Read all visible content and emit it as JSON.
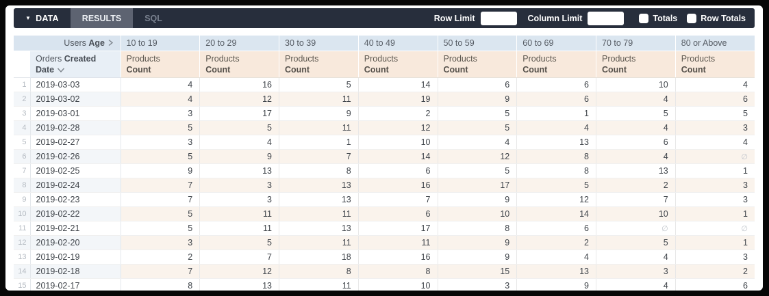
{
  "colors": {
    "toolbar_bg": "#272e3c",
    "results_tab_bg": "#5d6371",
    "sql_tab_text": "#79818f",
    "pivot_header_bg": "#dbe6f0",
    "dimension_header_bg": "#e8eff6",
    "measure_header_bg": "#f8e9dc",
    "stripe_measure_bg": "#faf3ec",
    "stripe_dimension_bg": "#f3f6f9"
  },
  "toolbar": {
    "data_tab": "DATA",
    "results_tab": "RESULTS",
    "sql_tab": "SQL",
    "row_limit_label": "Row Limit",
    "row_limit_value": "",
    "column_limit_label": "Column Limit",
    "column_limit_value": "",
    "totals_label": "Totals",
    "totals_checked": false,
    "row_totals_label": "Row Totals",
    "row_totals_checked": false
  },
  "table": {
    "pivot_dimension": {
      "prefix": "Users",
      "field": "Age"
    },
    "age_buckets": [
      "10 to 19",
      "20 to 29",
      "30 to 39",
      "40 to 49",
      "50 to 59",
      "60 to 69",
      "70 to 79",
      "80 or Above"
    ],
    "row_dimension": {
      "prefix": "Orders",
      "field": "Created Date"
    },
    "measure": {
      "view": "Products",
      "field": "Count"
    },
    "null_symbol": "∅",
    "rows": [
      {
        "num": "1",
        "date": "2019-03-03",
        "values": [
          4,
          16,
          5,
          14,
          6,
          6,
          10,
          4
        ]
      },
      {
        "num": "2",
        "date": "2019-03-02",
        "values": [
          4,
          12,
          11,
          19,
          9,
          6,
          4,
          6
        ]
      },
      {
        "num": "3",
        "date": "2019-03-01",
        "values": [
          3,
          17,
          9,
          2,
          5,
          1,
          5,
          5
        ]
      },
      {
        "num": "4",
        "date": "2019-02-28",
        "values": [
          5,
          5,
          11,
          12,
          5,
          4,
          4,
          3
        ]
      },
      {
        "num": "5",
        "date": "2019-02-27",
        "values": [
          3,
          4,
          1,
          10,
          4,
          13,
          6,
          4
        ]
      },
      {
        "num": "6",
        "date": "2019-02-26",
        "values": [
          5,
          9,
          7,
          14,
          12,
          8,
          4,
          null
        ]
      },
      {
        "num": "7",
        "date": "2019-02-25",
        "values": [
          9,
          13,
          8,
          6,
          5,
          8,
          13,
          1
        ]
      },
      {
        "num": "8",
        "date": "2019-02-24",
        "values": [
          7,
          3,
          13,
          16,
          17,
          5,
          2,
          3
        ]
      },
      {
        "num": "9",
        "date": "2019-02-23",
        "values": [
          7,
          3,
          13,
          7,
          9,
          12,
          7,
          3
        ]
      },
      {
        "num": "10",
        "date": "2019-02-22",
        "values": [
          5,
          11,
          11,
          6,
          10,
          14,
          10,
          1
        ]
      },
      {
        "num": "11",
        "date": "2019-02-21",
        "values": [
          5,
          11,
          13,
          17,
          8,
          6,
          null,
          null
        ]
      },
      {
        "num": "12",
        "date": "2019-02-20",
        "values": [
          3,
          5,
          11,
          11,
          9,
          2,
          5,
          1
        ]
      },
      {
        "num": "13",
        "date": "2019-02-19",
        "values": [
          2,
          7,
          18,
          16,
          9,
          4,
          4,
          3
        ]
      },
      {
        "num": "14",
        "date": "2019-02-18",
        "values": [
          7,
          12,
          8,
          8,
          15,
          13,
          3,
          2
        ]
      },
      {
        "num": "15",
        "date": "2019-02-17",
        "values": [
          8,
          13,
          11,
          10,
          3,
          9,
          4,
          6
        ]
      }
    ]
  }
}
